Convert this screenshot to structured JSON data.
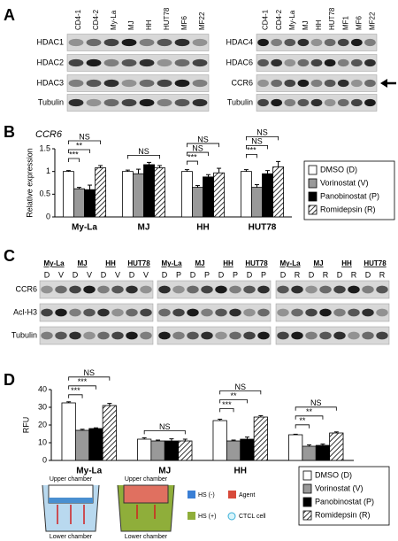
{
  "figure": {
    "a": {
      "label": "A",
      "left": {
        "lanes": [
          "CD4-1",
          "CD4-2",
          "My-La",
          "MJ",
          "HH",
          "HUT78",
          "MF6",
          "MF22"
        ],
        "rows": [
          "HDAC1",
          "HDAC2",
          "HDAC3",
          "Tubulin"
        ]
      },
      "right": {
        "lanes": [
          "CD4-1",
          "CD4-2",
          "My-La",
          "MJ",
          "HH",
          "HUT78",
          "MF1",
          "MF6",
          "MF22"
        ],
        "rows": [
          "HDAC4",
          "HDAC6",
          "CCR6",
          "Tubulin"
        ]
      }
    },
    "b": {
      "label": "B"
    },
    "c": {
      "label": "C",
      "cells": [
        "My-La",
        "MJ",
        "HH",
        "HUT78"
      ],
      "groups": [
        {
          "lanes": [
            "D",
            "V"
          ]
        },
        {
          "lanes": [
            "D",
            "P"
          ]
        },
        {
          "lanes": [
            "D",
            "R"
          ]
        }
      ],
      "rows": [
        "CCR6",
        "Acl-H3",
        "Tubulin"
      ]
    },
    "d": {
      "label": "D"
    },
    "schematic": {
      "upper": "Upper chamber",
      "lower": "Lower chamber",
      "legend": [
        "HS (-)",
        "Agent",
        "HS (+)",
        "CTCL cell"
      ]
    }
  },
  "chart_data": [
    {
      "type": "bar",
      "title": "CCR6",
      "y_label": "Relative expression",
      "categories": [
        "My-La",
        "MJ",
        "HH",
        "HUT78"
      ],
      "series": [
        {
          "name": "DMSO (D)",
          "color": "#ffffff",
          "values": [
            1,
            1,
            1,
            1
          ],
          "errors": [
            0.02,
            0.03,
            0.04,
            0.04
          ]
        },
        {
          "name": "Vorinostat (V)",
          "color": "#999999",
          "values": [
            0.62,
            0.95,
            0.65,
            0.65
          ],
          "errors": [
            0.03,
            0.1,
            0.04,
            0.06
          ]
        },
        {
          "name": "Panobinostat (P)",
          "color": "#000000",
          "values": [
            0.6,
            1.15,
            0.88,
            0.95
          ],
          "errors": [
            0.1,
            0.05,
            0.05,
            0.07
          ]
        },
        {
          "name": "Romidepsin (R)",
          "color": "#ffffff",
          "pattern": "hatch",
          "values": [
            1.08,
            1.08,
            0.97,
            1.1
          ],
          "errors": [
            0.05,
            0.05,
            0.1,
            0.12
          ]
        }
      ],
      "significance": [
        [
          "***",
          "**",
          "NS"
        ],
        [
          "NS"
        ],
        [
          "***",
          "NS",
          "NS"
        ],
        [
          "***",
          "NS",
          "NS"
        ]
      ],
      "ylim": [
        0,
        1.5
      ],
      "yticks": [
        0,
        0.5,
        1,
        1.5
      ]
    },
    {
      "type": "bar",
      "y_label": "RFU",
      "categories": [
        "My-La",
        "MJ",
        "HH",
        "HUT78"
      ],
      "series": [
        {
          "name": "DMSO (D)",
          "color": "#ffffff",
          "values": [
            32.5,
            12,
            22.5,
            14.5
          ],
          "errors": [
            0.6,
            0.8,
            0.8,
            0.3
          ]
        },
        {
          "name": "Vorinostat (V)",
          "color": "#999999",
          "values": [
            17,
            11,
            11,
            8
          ],
          "errors": [
            0.6,
            0.5,
            0.5,
            0.8
          ]
        },
        {
          "name": "Panobinostat (P)",
          "color": "#000000",
          "values": [
            18,
            11,
            12,
            8.5
          ],
          "errors": [
            0.4,
            1.2,
            1.2,
            0.8
          ]
        },
        {
          "name": "Romidepsin (R)",
          "color": "#ffffff",
          "pattern": "hatch",
          "values": [
            31,
            11,
            24.5,
            15.5
          ],
          "errors": [
            1.2,
            1.0,
            0.8,
            0.6
          ]
        }
      ],
      "significance": [
        [
          "***",
          "***",
          "NS"
        ],
        [
          "NS"
        ],
        [
          "***",
          "**",
          "NS"
        ],
        [
          "**",
          "**",
          "NS"
        ]
      ],
      "ylim": [
        0,
        40
      ],
      "yticks": [
        0,
        10,
        20,
        30,
        40
      ]
    }
  ]
}
